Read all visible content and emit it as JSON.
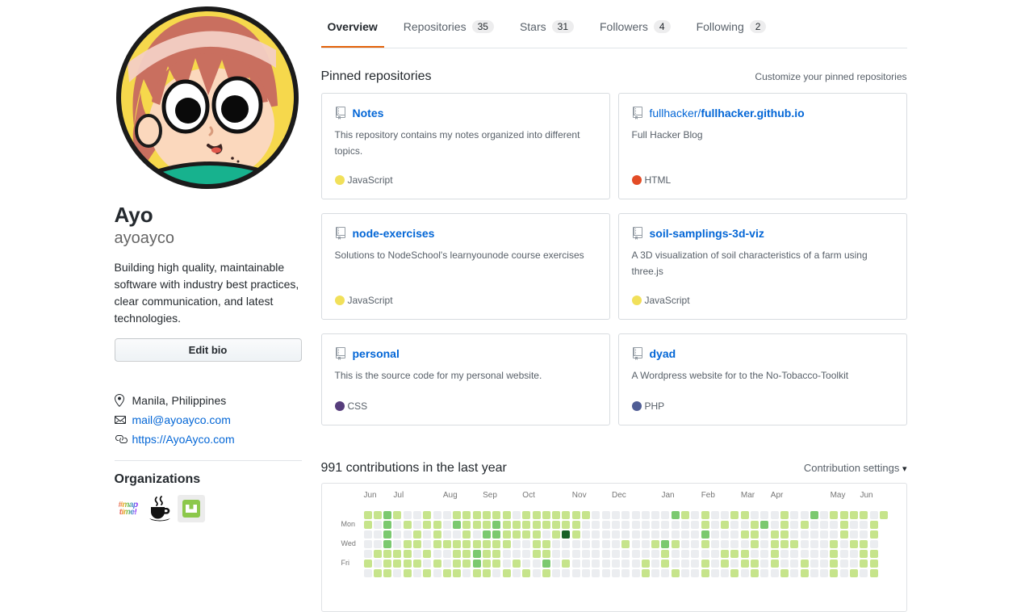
{
  "profile": {
    "name": "Ayo",
    "login": "ayoayco",
    "bio": "Building high quality, maintainable software with industry best practices, clear communication, and latest technologies.",
    "edit_bio_label": "Edit bio",
    "location": "Manila, Philippines",
    "email": "mail@ayoayco.com",
    "website": "https://AyoAyco.com",
    "organizations_label": "Organizations",
    "org_maptime_line1": "#map",
    "org_maptime_line2": "time!"
  },
  "nav": {
    "tabs": [
      {
        "label": "Overview",
        "count": "",
        "active": true
      },
      {
        "label": "Repositories",
        "count": "35",
        "active": false
      },
      {
        "label": "Stars",
        "count": "31",
        "active": false
      },
      {
        "label": "Followers",
        "count": "4",
        "active": false
      },
      {
        "label": "Following",
        "count": "2",
        "active": false
      }
    ]
  },
  "pinned": {
    "title": "Pinned repositories",
    "customize_label": "Customize your pinned repositories",
    "repos": [
      {
        "owner": "",
        "name": "Notes",
        "description": "This repository contains my notes organized into different topics.",
        "language": "JavaScript",
        "language_color": "#f1e05a"
      },
      {
        "owner": "fullhacker/",
        "name": "fullhacker.github.io",
        "description": "Full Hacker Blog",
        "language": "HTML",
        "language_color": "#e34c26"
      },
      {
        "owner": "",
        "name": "node-exercises",
        "description": "Solutions to NodeSchool's learnyounode course exercises",
        "language": "JavaScript",
        "language_color": "#f1e05a"
      },
      {
        "owner": "",
        "name": "soil-samplings-3d-viz",
        "description": "A 3D visualization of soil characteristics of a farm using three.js",
        "language": "JavaScript",
        "language_color": "#f1e05a"
      },
      {
        "owner": "",
        "name": "personal",
        "description": "This is the source code for my personal website.",
        "language": "CSS",
        "language_color": "#563d7c"
      },
      {
        "owner": "",
        "name": "dyad",
        "description": "A Wordpress website for to the No-Tobacco-Toolkit",
        "language": "PHP",
        "language_color": "#4F5D95"
      }
    ]
  },
  "contributions": {
    "title": "991 contributions in the last year",
    "settings_label": "Contribution settings",
    "caret_icon": "▾",
    "months": [
      {
        "label": "Jun",
        "col": 0
      },
      {
        "label": "Jul",
        "col": 3
      },
      {
        "label": "Aug",
        "col": 8
      },
      {
        "label": "Sep",
        "col": 12
      },
      {
        "label": "Oct",
        "col": 16
      },
      {
        "label": "Nov",
        "col": 21
      },
      {
        "label": "Dec",
        "col": 25
      },
      {
        "label": "Jan",
        "col": 30
      },
      {
        "label": "Feb",
        "col": 34
      },
      {
        "label": "Mar",
        "col": 38
      },
      {
        "label": "Apr",
        "col": 41
      },
      {
        "label": "May",
        "col": 47
      },
      {
        "label": "Jun",
        "col": 50
      }
    ],
    "day_labels": [
      {
        "label": "Mon",
        "row": 1
      },
      {
        "label": "Wed",
        "row": 3
      },
      {
        "label": "Fri",
        "row": 5
      }
    ],
    "level_colors": {
      "0": "#ebedf0",
      "1": "#c6e48b",
      "2": "#7bc96f",
      "3": "#239a3b",
      "4": "#196127"
    },
    "grid": [
      "11210010011111101111111000000002101001100010020111101",
      "1020101102111211111111000000000000101001201010001001x",
      "0020010100102211110141000000000000200011011000001001x",
      "0020110111111110011000000010012100100001011100010110x",
      "0111101001121100011000000000001000001110010000010011x",
      "1011110101121101002010000000101000101011010010010011x",
      "0110101011011010101000000000100100100101001010010101x"
    ]
  }
}
